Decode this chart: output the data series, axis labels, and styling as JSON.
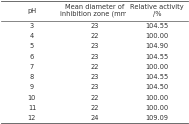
{
  "columns": [
    "pH",
    "Mean diameter of\ninhibition zone (mm)",
    "Relative activity\n/%"
  ],
  "rows": [
    [
      "3",
      "23",
      "104.55"
    ],
    [
      "4",
      "22",
      "100.00"
    ],
    [
      "5",
      "23",
      "104.90"
    ],
    [
      "6",
      "23",
      "104.55"
    ],
    [
      "7",
      "22",
      "100.00"
    ],
    [
      "8",
      "23",
      "104.55"
    ],
    [
      "9",
      "23",
      "104.50"
    ],
    [
      "10",
      "22",
      "100.00"
    ],
    [
      "11",
      "22",
      "100.00"
    ],
    [
      "12",
      "24",
      "109.09"
    ]
  ],
  "bg_color": "#ffffff",
  "text_color": "#333333",
  "line_color": "#555555",
  "font_size": 4.8,
  "header_font_size": 4.8
}
